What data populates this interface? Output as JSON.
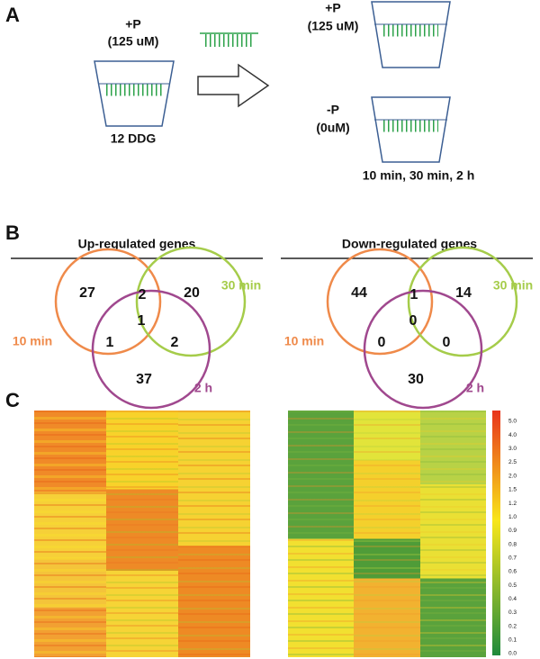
{
  "panel_a": {
    "label": "A",
    "start": {
      "condition": "+P",
      "concentration": "(125 uM)",
      "age": "12 DDG"
    },
    "treatments": [
      {
        "condition": "+P",
        "concentration": "(125 uM)"
      },
      {
        "condition": "-P",
        "concentration": "(0uM)"
      }
    ],
    "durations": "10 min, 30 min, 2 h"
  },
  "panel_b": {
    "label": "B",
    "set_labels": [
      "10 min",
      "30 min",
      "2 h"
    ],
    "venns": [
      {
        "title": "Up-regulated genes",
        "counts": [
          27,
          2,
          20,
          1,
          1,
          2,
          37
        ]
      },
      {
        "title": "Down-regulated genes",
        "counts": [
          44,
          1,
          14,
          0,
          0,
          0,
          30
        ]
      }
    ]
  },
  "panel_c": {
    "label": "C",
    "colorbar_labels": [
      "5.0",
      "4.0",
      "3.0",
      "2.5",
      "2.0",
      "1.5",
      "1.2",
      "1.0",
      "0.9",
      "0.8",
      "0.7",
      "0.6",
      "0.5",
      "0.4",
      "0.3",
      "0.2",
      "0.1",
      "0.0"
    ]
  }
}
